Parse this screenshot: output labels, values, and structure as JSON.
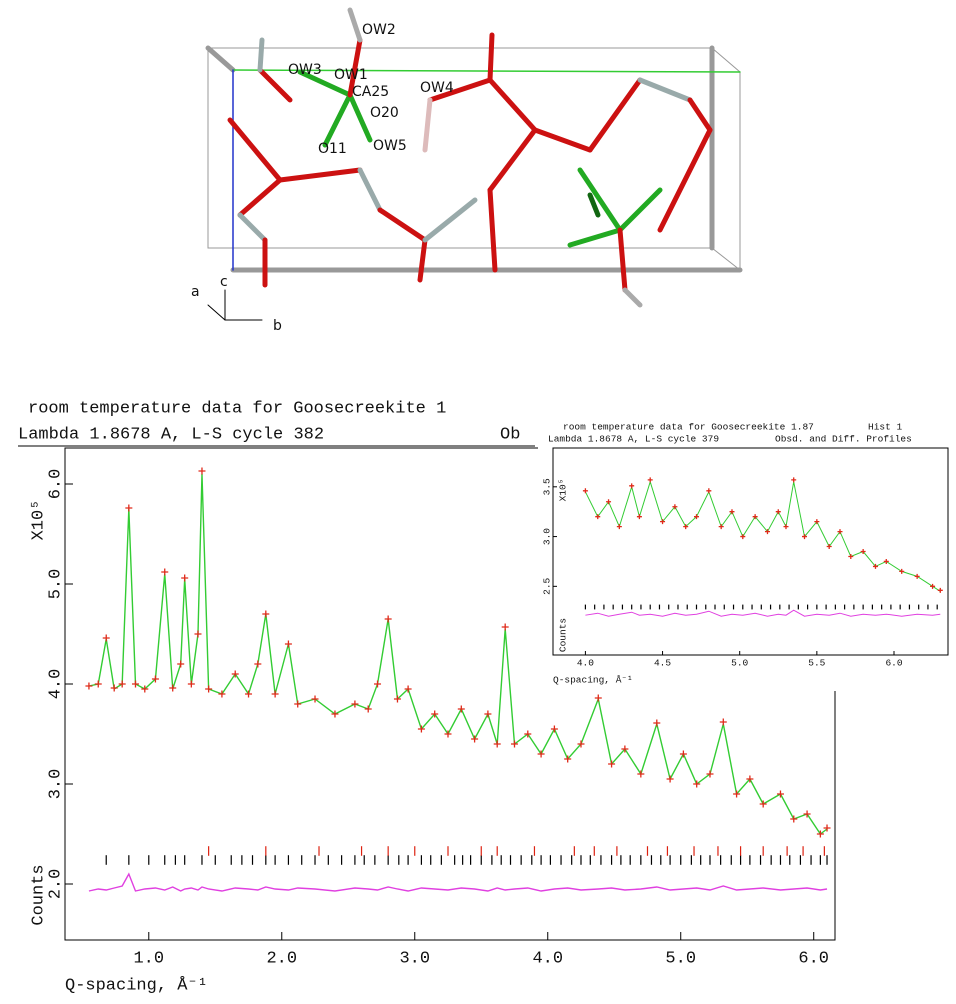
{
  "structure": {
    "labels": [
      "OW2",
      "OW3",
      "OW1",
      "CA25",
      "OW4",
      "O20",
      "O11",
      "OW5"
    ],
    "axes": [
      "a",
      "c",
      "b"
    ]
  },
  "chart_data": [
    {
      "type": "line",
      "title": "room temperature data for Goosecreekite 1",
      "subtitle": "Lambda 1.8678 A, L-S cycle  382",
      "annotations": [
        "Ob"
      ],
      "ylabel": "X10⁵",
      "ylabel2": "Counts",
      "xlabel": "Q-spacing, Å⁻¹",
      "xlim": [
        0.37,
        6.16
      ],
      "ylim": [
        1.44,
        6.36
      ],
      "xticks": [
        {
          "value": 1,
          "label": "1.0"
        },
        {
          "value": 2,
          "label": "2.0"
        },
        {
          "value": 3,
          "label": "3.0"
        },
        {
          "value": 4,
          "label": "4.0"
        },
        {
          "value": 5,
          "label": "5.0"
        },
        {
          "value": 6,
          "label": "6.0"
        }
      ],
      "yticks": [
        {
          "value": 2,
          "label": "2.0"
        },
        {
          "value": 3,
          "label": "3.0"
        },
        {
          "value": 4,
          "label": "4.0"
        },
        {
          "value": 5,
          "label": "5.0"
        },
        {
          "value": 6,
          "label": "6.0"
        }
      ],
      "x": [
        0.55,
        0.62,
        0.68,
        0.74,
        0.8,
        0.85,
        0.9,
        0.97,
        1.05,
        1.12,
        1.18,
        1.24,
        1.27,
        1.32,
        1.37,
        1.4,
        1.45,
        1.55,
        1.65,
        1.75,
        1.82,
        1.88,
        1.95,
        2.05,
        2.12,
        2.25,
        2.4,
        2.55,
        2.65,
        2.72,
        2.8,
        2.87,
        2.95,
        3.05,
        3.15,
        3.25,
        3.35,
        3.45,
        3.55,
        3.62,
        3.68,
        3.75,
        3.85,
        3.95,
        4.05,
        4.15,
        4.25,
        4.38,
        4.48,
        4.58,
        4.7,
        4.82,
        4.92,
        5.02,
        5.12,
        5.22,
        5.32,
        5.42,
        5.52,
        5.62,
        5.75,
        5.85,
        5.95,
        6.05,
        6.1
      ],
      "series": [
        {
          "style": "line",
          "color": "#33cc33",
          "values": [
            3.98,
            4.0,
            4.45,
            3.95,
            4.0,
            5.75,
            4.0,
            3.95,
            4.05,
            5.1,
            3.95,
            4.2,
            5.05,
            4.0,
            4.5,
            6.1,
            3.95,
            3.9,
            4.1,
            3.9,
            4.2,
            4.7,
            3.9,
            4.4,
            3.8,
            3.85,
            3.7,
            3.8,
            3.75,
            4.0,
            4.65,
            3.85,
            3.95,
            3.55,
            3.7,
            3.5,
            3.75,
            3.45,
            3.7,
            3.4,
            4.55,
            3.4,
            3.5,
            3.3,
            3.55,
            3.25,
            3.4,
            3.85,
            3.2,
            3.35,
            3.1,
            3.6,
            3.05,
            3.3,
            3.0,
            3.1,
            3.6,
            2.9,
            3.05,
            2.8,
            2.9,
            2.65,
            2.7,
            2.5,
            2.55
          ]
        },
        {
          "style": "cross",
          "color": "#e02a1a",
          "values": [
            3.98,
            4.0,
            4.46,
            3.96,
            4.0,
            5.76,
            4.0,
            3.95,
            4.05,
            5.12,
            3.96,
            4.2,
            5.06,
            4.0,
            4.5,
            6.13,
            3.95,
            3.9,
            4.1,
            3.9,
            4.2,
            4.7,
            3.9,
            4.4,
            3.8,
            3.85,
            3.7,
            3.8,
            3.75,
            4.0,
            4.65,
            3.85,
            3.95,
            3.55,
            3.7,
            3.5,
            3.75,
            3.45,
            3.7,
            3.4,
            4.57,
            3.4,
            3.5,
            3.3,
            3.55,
            3.25,
            3.4,
            3.86,
            3.2,
            3.35,
            3.1,
            3.61,
            3.05,
            3.3,
            3.0,
            3.1,
            3.62,
            2.9,
            3.05,
            2.8,
            2.9,
            2.65,
            2.7,
            2.5,
            2.56
          ]
        },
        {
          "style": "line",
          "color": "#e040e0",
          "values": [
            1.93,
            1.95,
            1.94,
            1.96,
            1.98,
            2.1,
            1.93,
            1.95,
            1.96,
            1.94,
            1.97,
            1.93,
            1.95,
            1.96,
            1.94,
            1.97,
            1.95,
            1.93,
            1.96,
            1.95,
            1.94,
            1.97,
            1.95,
            1.94,
            1.96,
            1.95,
            1.93,
            1.96,
            1.95,
            1.94,
            1.97,
            1.95,
            1.93,
            1.96,
            1.95,
            1.94,
            1.96,
            1.95,
            1.93,
            1.96,
            1.94,
            1.95,
            1.96,
            1.93,
            1.95,
            1.96,
            1.94,
            1.95,
            1.96,
            1.94,
            1.95,
            1.97,
            1.94,
            1.95,
            1.96,
            1.94,
            1.98,
            1.94,
            1.95,
            1.96,
            1.94,
            1.95,
            1.96,
            1.94,
            1.95
          ]
        }
      ],
      "reflections": [
        {
          "color": "#000000",
          "x": [
            0.68,
            0.85,
            1.0,
            1.12,
            1.2,
            1.27,
            1.4,
            1.5,
            1.62,
            1.7,
            1.78,
            1.88,
            1.95,
            2.05,
            2.15,
            2.25,
            2.35,
            2.45,
            2.55,
            2.62,
            2.7,
            2.8,
            2.88,
            2.95,
            3.05,
            3.12,
            3.2,
            3.3,
            3.36,
            3.42,
            3.5,
            3.58,
            3.65,
            3.72,
            3.8,
            3.88,
            3.95,
            4.02,
            4.1,
            4.18,
            4.25,
            4.32,
            4.4,
            4.48,
            4.55,
            4.62,
            4.7,
            4.78,
            4.85,
            4.92,
            5.0,
            5.08,
            5.15,
            5.22,
            5.3,
            5.38,
            5.45,
            5.52,
            5.6,
            5.68,
            5.75,
            5.82,
            5.9,
            5.98,
            6.05,
            6.1
          ]
        },
        {
          "color": "#dd2211",
          "x": [
            1.45,
            1.88,
            2.28,
            2.6,
            2.8,
            3.0,
            3.25,
            3.5,
            3.62,
            3.9,
            4.2,
            4.35,
            4.52,
            4.75,
            4.9,
            5.1,
            5.28,
            5.45,
            5.62,
            5.8,
            5.92,
            6.08
          ]
        }
      ]
    },
    {
      "type": "line",
      "title": "room temperature data for Goosecreekite 1.87",
      "subtitle": "Lambda 1.8678 A, L-S cycle  379",
      "annotations": [
        "Hist  1",
        "Obsd. and Diff. Profiles"
      ],
      "ylabel": "X10⁵",
      "ylabel2": "Counts",
      "xlabel": "Q-spacing, Å⁻¹",
      "xlim": [
        3.79,
        6.35
      ],
      "ylim": [
        1.81,
        3.89
      ],
      "xticks": [
        {
          "value": 4,
          "label": "4.0"
        },
        {
          "value": 4.5,
          "label": "4.5"
        },
        {
          "value": 5,
          "label": "5.0"
        },
        {
          "value": 5.5,
          "label": "5.5"
        },
        {
          "value": 6,
          "label": "6.0"
        }
      ],
      "yticks": [
        {
          "value": 2.5,
          "label": "2.5"
        },
        {
          "value": 3,
          "label": "3.0"
        },
        {
          "value": 3.5,
          "label": "3.5"
        }
      ],
      "x": [
        4.0,
        4.08,
        4.15,
        4.22,
        4.3,
        4.35,
        4.42,
        4.5,
        4.58,
        4.65,
        4.72,
        4.8,
        4.88,
        4.95,
        5.02,
        5.1,
        5.18,
        5.25,
        5.3,
        5.35,
        5.42,
        5.5,
        5.58,
        5.65,
        5.72,
        5.8,
        5.88,
        5.95,
        6.05,
        6.15,
        6.25,
        6.3
      ],
      "series": [
        {
          "style": "line",
          "color": "#33cc33",
          "values": [
            3.45,
            3.2,
            3.35,
            3.1,
            3.5,
            3.2,
            3.55,
            3.15,
            3.3,
            3.1,
            3.2,
            3.45,
            3.1,
            3.25,
            3.0,
            3.2,
            3.05,
            3.25,
            3.1,
            3.55,
            3.0,
            3.15,
            2.9,
            3.05,
            2.8,
            2.85,
            2.7,
            2.75,
            2.65,
            2.6,
            2.5,
            2.45
          ]
        },
        {
          "style": "cross",
          "color": "#e02a1a",
          "values": [
            3.46,
            3.2,
            3.35,
            3.1,
            3.51,
            3.2,
            3.57,
            3.15,
            3.3,
            3.1,
            3.2,
            3.46,
            3.1,
            3.25,
            3.0,
            3.2,
            3.05,
            3.25,
            3.1,
            3.57,
            3.0,
            3.15,
            2.9,
            3.05,
            2.8,
            2.85,
            2.7,
            2.75,
            2.65,
            2.6,
            2.5,
            2.46
          ]
        },
        {
          "style": "line",
          "color": "#e040e0",
          "values": [
            2.21,
            2.23,
            2.2,
            2.22,
            2.24,
            2.21,
            2.22,
            2.2,
            2.23,
            2.21,
            2.22,
            2.25,
            2.2,
            2.22,
            2.21,
            2.23,
            2.2,
            2.22,
            2.21,
            2.26,
            2.2,
            2.22,
            2.21,
            2.23,
            2.2,
            2.22,
            2.21,
            2.22,
            2.2,
            2.22,
            2.21,
            2.22
          ]
        }
      ],
      "reflections": [
        {
          "color": "#000000",
          "x": [
            4.0,
            4.06,
            4.12,
            4.18,
            4.24,
            4.3,
            4.36,
            4.42,
            4.48,
            4.54,
            4.6,
            4.66,
            4.72,
            4.78,
            4.84,
            4.9,
            4.96,
            5.02,
            5.08,
            5.14,
            5.2,
            5.26,
            5.32,
            5.38,
            5.44,
            5.5,
            5.56,
            5.62,
            5.68,
            5.74,
            5.8,
            5.86,
            5.92,
            5.98,
            6.04,
            6.1,
            6.16,
            6.22,
            6.28
          ]
        }
      ]
    }
  ]
}
